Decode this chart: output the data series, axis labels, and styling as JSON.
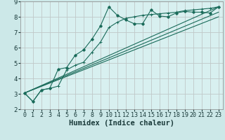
{
  "xlabel": "Humidex (Indice chaleur)",
  "bg_color": "#cce8e8",
  "plot_bg_color": "#d8f0f0",
  "line_color": "#1a6b5a",
  "grid_color": "#c0c8c8",
  "spine_color": "#888888",
  "xlim": [
    -0.5,
    23.5
  ],
  "ylim": [
    2,
    9
  ],
  "xticks": [
    0,
    1,
    2,
    3,
    4,
    5,
    6,
    7,
    8,
    9,
    10,
    11,
    12,
    13,
    14,
    15,
    16,
    17,
    18,
    19,
    20,
    21,
    22,
    23
  ],
  "yticks": [
    2,
    3,
    4,
    5,
    6,
    7,
    8,
    9
  ],
  "series1_x": [
    0,
    1,
    2,
    3,
    4,
    5,
    6,
    7,
    8,
    9,
    10,
    11,
    12,
    13,
    14,
    15,
    16,
    17,
    18,
    19,
    20,
    21,
    22,
    23
  ],
  "series1_y": [
    3.05,
    2.5,
    3.25,
    3.35,
    4.6,
    4.7,
    5.5,
    5.85,
    6.55,
    7.4,
    8.65,
    8.1,
    7.8,
    7.55,
    7.55,
    8.45,
    8.05,
    8.0,
    8.25,
    8.35,
    8.3,
    8.3,
    8.25,
    8.65
  ],
  "series2_x": [
    0,
    1,
    2,
    3,
    4,
    5,
    6,
    7,
    8,
    9,
    10,
    11,
    12,
    13,
    14,
    15,
    16,
    17,
    18,
    19,
    20,
    21,
    22,
    23
  ],
  "series2_y": [
    3.05,
    2.5,
    3.25,
    3.35,
    3.5,
    4.55,
    4.85,
    5.05,
    5.7,
    6.35,
    7.3,
    7.65,
    7.9,
    8.0,
    8.1,
    8.15,
    8.2,
    8.25,
    8.3,
    8.4,
    8.45,
    8.5,
    8.55,
    8.65
  ],
  "line3_x0": 0,
  "line3_x1": 23,
  "line3_y0": 3.05,
  "line3_y1": 8.65,
  "line4_x0": 0,
  "line4_x1": 23,
  "line4_y0": 3.05,
  "line4_y1": 8.3,
  "line5_x0": 0,
  "line5_x1": 23,
  "line5_y0": 3.05,
  "line5_y1": 8.0,
  "xlabel_fontsize": 7.5,
  "tick_fontsize": 6.0
}
